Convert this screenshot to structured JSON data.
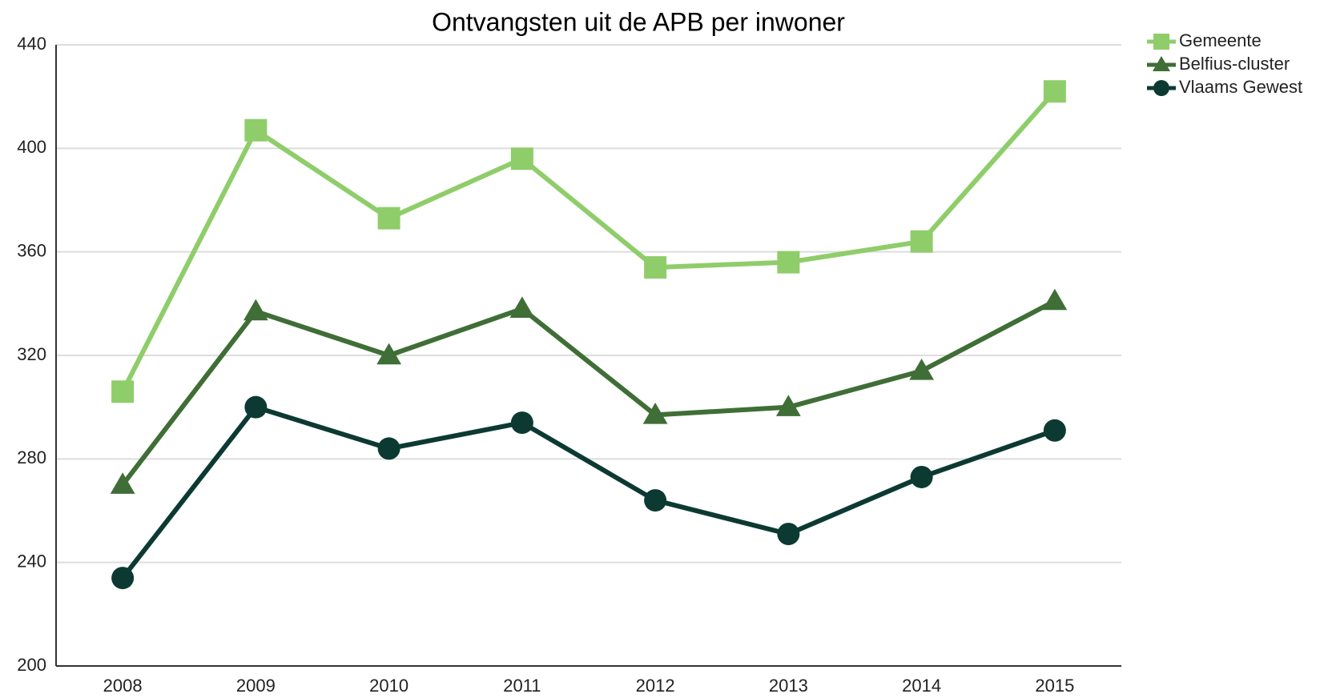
{
  "chart_data": {
    "type": "line",
    "title": "Ontvangsten uit de APB per inwoner",
    "categories": [
      "2008",
      "2009",
      "2010",
      "2011",
      "2012",
      "2013",
      "2014",
      "2015"
    ],
    "series": [
      {
        "name": "Gemeente",
        "color": "#8fcd6a",
        "marker": "square",
        "values": [
          306,
          407,
          373,
          396,
          354,
          356,
          364,
          422
        ]
      },
      {
        "name": "Belfius-cluster",
        "color": "#3f6e36",
        "marker": "triangle",
        "values": [
          270,
          337,
          320,
          338,
          297,
          300,
          314,
          341
        ]
      },
      {
        "name": "Vlaams Gewest",
        "color": "#0c3a33",
        "marker": "circle",
        "values": [
          234,
          300,
          284,
          294,
          264,
          251,
          273,
          291
        ]
      }
    ],
    "ylim": [
      200,
      440
    ],
    "yticks": [
      200,
      240,
      280,
      320,
      360,
      400,
      440
    ],
    "grid": true,
    "legend": "top-right"
  }
}
